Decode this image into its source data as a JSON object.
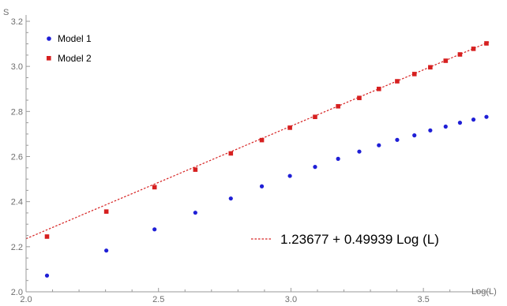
{
  "chart_data": {
    "type": "scatter",
    "title": "",
    "xlabel": "Log(L)",
    "ylabel": "S",
    "xlim": [
      2.0,
      3.75
    ],
    "ylim": [
      2.0,
      3.2
    ],
    "x_ticks": [
      "2.0",
      "2.5",
      "3.0",
      "3.5"
    ],
    "y_ticks": [
      "2.0",
      "2.2",
      "2.4",
      "2.6",
      "2.8",
      "3.0",
      "3.2"
    ],
    "legend_position": "top-left",
    "series": [
      {
        "name": "Model 1",
        "marker": "circle",
        "color": "#1f1fd6",
        "points": [
          {
            "x": 2.079,
            "y": 2.072
          },
          {
            "x": 2.303,
            "y": 2.183
          },
          {
            "x": 2.485,
            "y": 2.277
          },
          {
            "x": 2.639,
            "y": 2.351
          },
          {
            "x": 2.773,
            "y": 2.414
          },
          {
            "x": 2.89,
            "y": 2.468
          },
          {
            "x": 2.996,
            "y": 2.514
          },
          {
            "x": 3.091,
            "y": 2.554
          },
          {
            "x": 3.178,
            "y": 2.59
          },
          {
            "x": 3.258,
            "y": 2.622
          },
          {
            "x": 3.332,
            "y": 2.65
          },
          {
            "x": 3.401,
            "y": 2.674
          },
          {
            "x": 3.466,
            "y": 2.694
          },
          {
            "x": 3.526,
            "y": 2.716
          },
          {
            "x": 3.584,
            "y": 2.733
          },
          {
            "x": 3.638,
            "y": 2.75
          },
          {
            "x": 3.689,
            "y": 2.764
          },
          {
            "x": 3.738,
            "y": 2.776
          }
        ]
      },
      {
        "name": "Model 2",
        "marker": "square",
        "color": "#d62020",
        "points": [
          {
            "x": 2.079,
            "y": 2.245
          },
          {
            "x": 2.303,
            "y": 2.356
          },
          {
            "x": 2.485,
            "y": 2.464
          },
          {
            "x": 2.639,
            "y": 2.542
          },
          {
            "x": 2.773,
            "y": 2.614
          },
          {
            "x": 2.89,
            "y": 2.673
          },
          {
            "x": 2.996,
            "y": 2.728
          },
          {
            "x": 3.091,
            "y": 2.776
          },
          {
            "x": 3.178,
            "y": 2.823
          },
          {
            "x": 3.258,
            "y": 2.86
          },
          {
            "x": 3.332,
            "y": 2.9
          },
          {
            "x": 3.401,
            "y": 2.934
          },
          {
            "x": 3.466,
            "y": 2.966
          },
          {
            "x": 3.526,
            "y": 2.996
          },
          {
            "x": 3.584,
            "y": 3.025
          },
          {
            "x": 3.638,
            "y": 3.053
          },
          {
            "x": 3.689,
            "y": 3.078
          },
          {
            "x": 3.738,
            "y": 3.102
          }
        ]
      }
    ],
    "fit_line": {
      "label": "1.23677 + 0.49939 Log (L)",
      "intercept": 1.23677,
      "slope": 0.49939,
      "color": "#d62020",
      "style": "dashed"
    }
  }
}
